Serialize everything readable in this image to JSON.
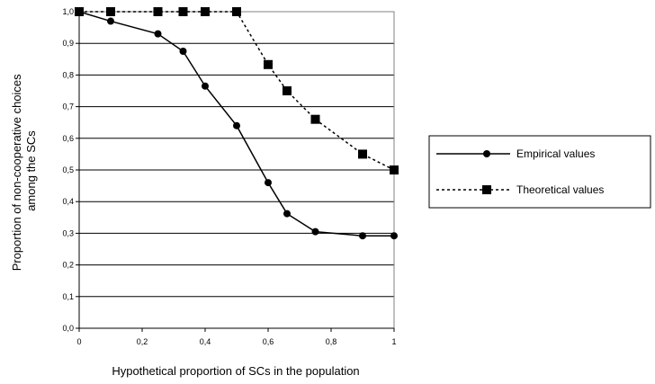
{
  "chart_data": {
    "type": "line",
    "title": "",
    "xlabel": "Hypothetical proportion of SCs in the population",
    "ylabel_lines": [
      "Proportion of non-cooperative choices",
      "among the SCs"
    ],
    "xlim": [
      0,
      1
    ],
    "ylim": [
      0,
      1
    ],
    "xticks": [
      {
        "value": 0,
        "label": "0"
      },
      {
        "value": 0.2,
        "label": "0,2"
      },
      {
        "value": 0.4,
        "label": "0,4"
      },
      {
        "value": 0.6,
        "label": "0,6"
      },
      {
        "value": 0.8,
        "label": "0,8"
      },
      {
        "value": 1,
        "label": "1"
      }
    ],
    "yticks": [
      {
        "value": 0,
        "label": "0,0"
      },
      {
        "value": 0.1,
        "label": "0,1"
      },
      {
        "value": 0.2,
        "label": "0,2"
      },
      {
        "value": 0.3,
        "label": "0,3"
      },
      {
        "value": 0.4,
        "label": "0,4"
      },
      {
        "value": 0.5,
        "label": "0,5"
      },
      {
        "value": 0.6,
        "label": "0,6"
      },
      {
        "value": 0.7,
        "label": "0,7"
      },
      {
        "value": 0.8,
        "label": "0,8"
      },
      {
        "value": 0.9,
        "label": "0,9"
      },
      {
        "value": 1,
        "label": "1,0"
      }
    ],
    "grid": "horizontal",
    "legend_position": "right",
    "series": [
      {
        "name": "Empirical values",
        "marker": "circle",
        "line": "solid",
        "color": "#000000",
        "x": [
          0,
          0.1,
          0.25,
          0.33,
          0.4,
          0.5,
          0.6,
          0.66,
          0.75,
          0.9,
          1.0
        ],
        "y": [
          1.0,
          0.97,
          0.93,
          0.875,
          0.765,
          0.64,
          0.46,
          0.362,
          0.305,
          0.292,
          0.292
        ]
      },
      {
        "name": "Theoretical values",
        "marker": "square",
        "line": "dashed",
        "color": "#000000",
        "x": [
          0,
          0.1,
          0.25,
          0.33,
          0.4,
          0.5,
          0.6,
          0.66,
          0.75,
          0.9,
          1.0
        ],
        "y": [
          1.0,
          1.0,
          1.0,
          1.0,
          1.0,
          1.0,
          0.833,
          0.75,
          0.66,
          0.55,
          0.5
        ]
      }
    ]
  }
}
